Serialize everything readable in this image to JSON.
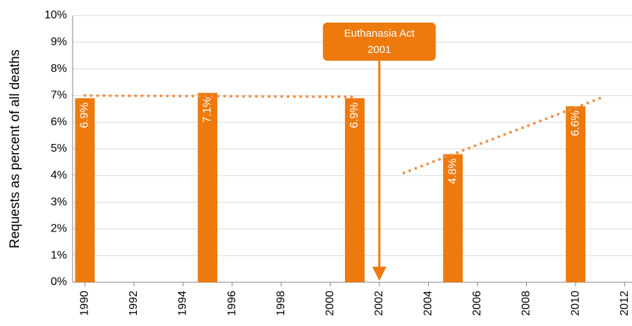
{
  "chart_data": {
    "type": "bar",
    "y_label": "Requests as percent of all deaths",
    "x": [
      1990,
      1995,
      2001,
      2005,
      2010
    ],
    "values": [
      6.9,
      7.1,
      6.9,
      4.8,
      6.6
    ],
    "value_labels": [
      "6.9%",
      "7.1%",
      "6.9%",
      "4.8%",
      "6.6%"
    ],
    "color": "#ee7a0e",
    "trend_lines": [
      {
        "x": [
          1990,
          2001
        ],
        "values": [
          7.0,
          6.95
        ]
      },
      {
        "x": [
          2003,
          2011
        ],
        "values": [
          4.1,
          6.9
        ]
      }
    ],
    "trend_color": "#f0914a",
    "annotation": {
      "lines": [
        "Euthanasia Act",
        "2001"
      ],
      "x": 2002
    },
    "xlim": [
      1989.5,
      2012.5
    ],
    "xticks": [
      1990,
      1992,
      1994,
      1996,
      1998,
      2000,
      2002,
      2004,
      2006,
      2008,
      2010,
      2012
    ],
    "ylim": [
      0,
      10
    ],
    "yticks": [
      {
        "value": 0,
        "label": "0%"
      },
      {
        "value": 1,
        "label": "1%"
      },
      {
        "value": 2,
        "label": "2%"
      },
      {
        "value": 3,
        "label": "3%"
      },
      {
        "value": 4,
        "label": "4%"
      },
      {
        "value": 5,
        "label": "5%"
      },
      {
        "value": 6,
        "label": "6%"
      },
      {
        "value": 7,
        "label": "7%"
      },
      {
        "value": 8,
        "label": "8%"
      },
      {
        "value": 9,
        "label": "9%"
      },
      {
        "value": 10,
        "label": "10%"
      }
    ],
    "grid": true
  }
}
